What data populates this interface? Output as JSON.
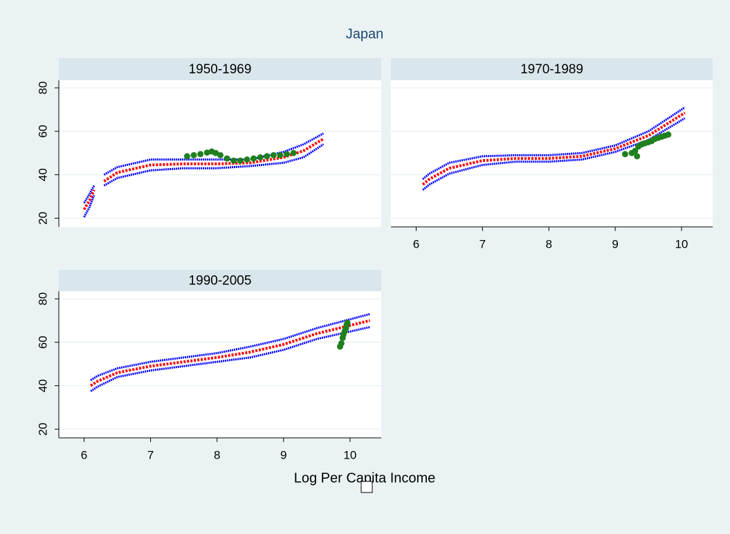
{
  "title": "Japan",
  "x_label": "Log Per Capita Income",
  "chart_data": [
    {
      "type": "line",
      "title": "1950-1969",
      "xlim": [
        5.62,
        10.47
      ],
      "ylim": [
        16,
        83.5
      ],
      "yticks": [
        20,
        40,
        60,
        80
      ],
      "y_tick_labels": true,
      "grid": true,
      "x": [
        6.0,
        6.08,
        6.15,
        6.22,
        6.3,
        6.5,
        7.0,
        7.5,
        8.0,
        8.5,
        9.0,
        9.3,
        9.6
      ],
      "series": [
        {
          "color": "#0000ff",
          "values": [
            27,
            31,
            35,
            null,
            40,
            43.5,
            47,
            47,
            47,
            47,
            50.5,
            54,
            59
          ]
        },
        {
          "color": "#ff0000",
          "values": [
            24,
            28,
            33,
            null,
            37,
            41,
            44.5,
            45,
            45,
            45.5,
            48,
            51,
            56.5
          ]
        },
        {
          "color": "#0000ff",
          "values": [
            20.5,
            25,
            30.5,
            null,
            35,
            38.5,
            42,
            43,
            43,
            44,
            45.5,
            48,
            54
          ]
        },
        {
          "type": "scatter",
          "color": "#1e801e",
          "x": [
            7.55,
            7.65,
            7.75,
            7.85,
            7.92,
            7.98,
            8.05,
            8.15,
            8.25,
            8.35,
            8.45,
            8.55,
            8.65,
            8.75,
            8.85,
            8.95,
            9.05,
            9.15
          ],
          "values": [
            48.5,
            49,
            49.5,
            50.2,
            50.7,
            50,
            49,
            47.5,
            46.5,
            46.5,
            47,
            47.5,
            48,
            48.5,
            49,
            49,
            49.5,
            50
          ]
        }
      ]
    },
    {
      "type": "line",
      "title": "1970-1989",
      "xlim": [
        5.62,
        10.47
      ],
      "ylim": [
        16,
        83.5
      ],
      "yticks": [
        20,
        40,
        60,
        80
      ],
      "y_tick_labels": false,
      "grid": true,
      "xticks": [
        6,
        7,
        8,
        9,
        10
      ],
      "x": [
        6.1,
        6.2,
        6.5,
        7.0,
        7.5,
        8.0,
        8.5,
        9.0,
        9.5,
        10.05
      ],
      "series": [
        {
          "color": "#0000ff",
          "values": [
            38,
            40.5,
            45.5,
            48.5,
            49,
            49,
            50,
            53.5,
            60,
            71
          ]
        },
        {
          "color": "#ff0000",
          "values": [
            35.5,
            38,
            43,
            46.5,
            47.5,
            47.5,
            48.5,
            52,
            58,
            68.5
          ]
        },
        {
          "color": "#0000ff",
          "values": [
            33,
            35.5,
            40.5,
            44.5,
            46,
            46,
            47,
            50.5,
            56,
            66
          ]
        },
        {
          "type": "scatter",
          "color": "#1e801e",
          "x": [
            9.15,
            9.25,
            9.3,
            9.33,
            9.35,
            9.4,
            9.45,
            9.5,
            9.55,
            9.6,
            9.65,
            9.7,
            9.75,
            9.8
          ],
          "values": [
            49.5,
            50,
            51,
            48.5,
            53,
            54,
            54.5,
            55,
            55.5,
            56.5,
            57,
            57.5,
            58,
            58.5
          ]
        }
      ]
    },
    {
      "type": "line",
      "title": "1990-2005",
      "xlim": [
        5.62,
        10.47
      ],
      "ylim": [
        16,
        83.5
      ],
      "yticks": [
        20,
        40,
        60,
        80
      ],
      "y_tick_labels": true,
      "grid": true,
      "xticks": [
        6,
        7,
        8,
        9,
        10
      ],
      "x": [
        6.1,
        6.2,
        6.5,
        7.0,
        7.5,
        8.0,
        8.5,
        9.0,
        9.5,
        10.3
      ],
      "series": [
        {
          "color": "#0000ff",
          "values": [
            42.5,
            44.5,
            48,
            51,
            53,
            55,
            58,
            61.5,
            66.5,
            73
          ]
        },
        {
          "color": "#ff0000",
          "values": [
            40,
            42,
            46,
            49,
            51,
            53,
            55.5,
            59,
            64,
            70
          ]
        },
        {
          "color": "#0000ff",
          "values": [
            37.5,
            39.5,
            44,
            47,
            49,
            51,
            53,
            56.5,
            61.5,
            67
          ]
        },
        {
          "type": "scatter",
          "color": "#1e801e",
          "x": [
            9.85,
            9.87,
            9.89,
            9.9,
            9.92,
            9.94,
            9.95,
            9.96
          ],
          "values": [
            58,
            59.5,
            62,
            63.5,
            65,
            66.5,
            68,
            69
          ]
        }
      ]
    }
  ]
}
